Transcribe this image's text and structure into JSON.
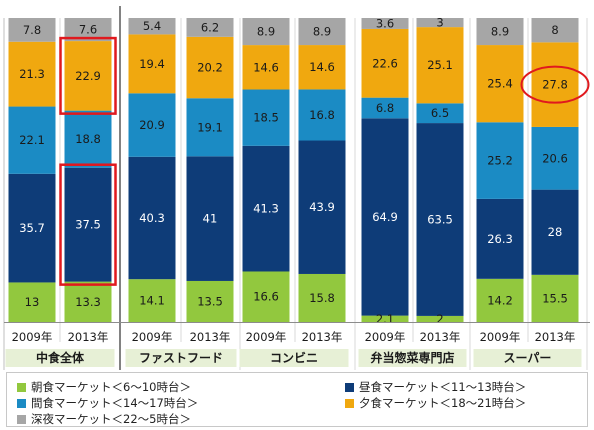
{
  "chart_data": {
    "type": "bar",
    "stacked": true,
    "percent": true,
    "categories": [
      "2009年",
      "2013年",
      "2009年",
      "2013年",
      "2009年",
      "2013年",
      "2009年",
      "2013年",
      "2009年",
      "2013年"
    ],
    "groups": [
      {
        "label": "中食全体",
        "indices": [
          0,
          1
        ]
      },
      {
        "label": "ファストフード",
        "indices": [
          2,
          3
        ]
      },
      {
        "label": "コンビニ",
        "indices": [
          4,
          5
        ]
      },
      {
        "label": "弁当惣菜専門店",
        "indices": [
          6,
          7
        ]
      },
      {
        "label": "スーパー",
        "indices": [
          8,
          9
        ]
      }
    ],
    "series": [
      {
        "name": "朝食マーケット＜6～10時台＞",
        "color": "#92c83e",
        "values": [
          13,
          13.3,
          14.1,
          13.5,
          16.6,
          15.8,
          2.1,
          2,
          14.2,
          15.5
        ],
        "labels": [
          "13",
          "13.3",
          "14.1",
          "13.5",
          "16.6",
          "15.8",
          "2.1",
          "2",
          "14.2",
          "15.5"
        ]
      },
      {
        "name": "昼食マーケット＜11～13時台＞",
        "color": "#0e3c78",
        "values": [
          35.7,
          37.5,
          40.3,
          41,
          41.3,
          43.9,
          64.9,
          63.5,
          26.3,
          28
        ],
        "labels": [
          "35.7",
          "37.5",
          "40.3",
          "41",
          "41.3",
          "43.9",
          "64.9",
          "63.5",
          "26.3",
          "28"
        ]
      },
      {
        "name": "間食マーケット＜14～17時台＞",
        "color": "#1b8bc4",
        "values": [
          22.1,
          18.8,
          20.9,
          19.1,
          18.5,
          16.8,
          6.8,
          6.5,
          25.2,
          20.6
        ],
        "labels": [
          "22.1",
          "18.8",
          "20.9",
          "19.1",
          "18.5",
          "16.8",
          "6.8",
          "6.5",
          "25.2",
          "20.6"
        ]
      },
      {
        "name": "夕食マーケット＜18～21時台＞",
        "color": "#f0a80f",
        "values": [
          21.3,
          22.9,
          19.4,
          20.2,
          14.6,
          14.6,
          22.6,
          25.1,
          25.4,
          27.8
        ],
        "labels": [
          "21.3",
          "22.9",
          "19.4",
          "20.2",
          "14.6",
          "14.6",
          "22.6",
          "25.1",
          "25.4",
          "27.8"
        ]
      },
      {
        "name": "深夜マーケット＜22～5時台＞",
        "color": "#a6a6a6",
        "values": [
          7.8,
          7.6,
          5.4,
          6.2,
          8.9,
          8.9,
          3.6,
          3,
          8.9,
          8
        ],
        "labels": [
          "7.8",
          "7.6",
          "5.4",
          "6.2",
          "8.9",
          "8.9",
          "3.6",
          "3",
          "8.9",
          "8"
        ]
      }
    ],
    "highlights": [
      {
        "category_index": 1,
        "series_index": 3,
        "shape": "rectangle",
        "color": "#e0191e"
      },
      {
        "category_index": 1,
        "series_index": 1,
        "shape": "rectangle",
        "color": "#e0191e"
      },
      {
        "category_index": 9,
        "series_index": 3,
        "shape": "ellipse",
        "color": "#e0191e"
      }
    ],
    "legend": {
      "position": "bottom"
    }
  }
}
